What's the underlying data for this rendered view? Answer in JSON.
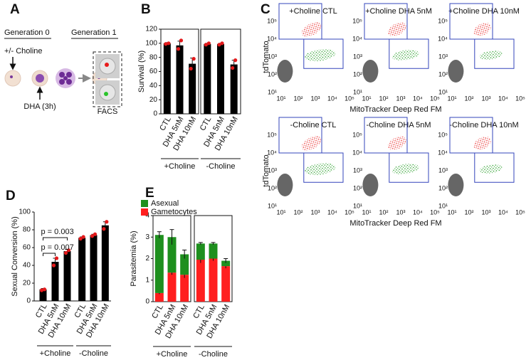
{
  "panel_labels": [
    "A",
    "B",
    "C",
    "D",
    "E"
  ],
  "panel_a": {
    "generation_0": "Generation 0",
    "generation_1": "Generation 1",
    "choline": "+/- Choline",
    "dha": "DHA (3h)",
    "facs": "FACS"
  },
  "panel_c": {
    "plots": [
      "+Choline CTL",
      "+Choline DHA 5nM",
      "+Choline DHA 10nM",
      "-Choline CTL",
      "-Choline DHA 5nM",
      "-Choline DHA 10nM"
    ],
    "xlabel": "MitoTracker Deep Red FM",
    "ylabel": "tdTomato",
    "ticks": [
      "10¹",
      "10²",
      "10³",
      "10⁴",
      "10⁵"
    ]
  },
  "chart_data": [
    {
      "type": "bar",
      "ylabel": "Survival (%)",
      "ylim": [
        0,
        120
      ],
      "yticks": [
        0,
        20,
        40,
        60,
        80,
        100,
        120
      ],
      "framed": true,
      "color": "#000000",
      "point_color": "#e41a1c",
      "groups": [
        {
          "name": "+Choline",
          "categories": [
            "CTL",
            "DHA 5nM",
            "DHA 10nM"
          ],
          "values": [
            100,
            97,
            71
          ],
          "errors": [
            1,
            6,
            8
          ],
          "points": [
            [
              99,
              100
            ],
            [
              92,
              104
            ],
            [
              64,
              78
            ]
          ]
        },
        {
          "name": "-Choline",
          "categories": [
            "CTL",
            "DHA 5nM",
            "DHA 10nM"
          ],
          "values": [
            99,
            99,
            70
          ],
          "errors": [
            1,
            1,
            6
          ],
          "points": [
            [
              98,
              100
            ],
            [
              98,
              100
            ],
            [
              65,
              76
            ]
          ]
        }
      ]
    },
    {
      "type": "bar",
      "ylabel": "Sexual Conversion (%)",
      "ylim": [
        0,
        100
      ],
      "yticks": [
        0,
        20,
        40,
        60,
        80,
        100
      ],
      "framed": false,
      "color": "#000000",
      "point_color": "#e41a1c",
      "annotations": [
        "p = 0.003",
        "p = 0.007"
      ],
      "groups": [
        {
          "name": "+Choline",
          "categories": [
            "CTL",
            "DHA 5nM",
            "DHA 10nM"
          ],
          "values": [
            13,
            44,
            56
          ],
          "errors": [
            1,
            4,
            2
          ],
          "points": [
            [
              12,
              13
            ],
            [
              40,
              48
            ],
            [
              54,
              57
            ]
          ]
        },
        {
          "name": "-Choline",
          "categories": [
            "CTL",
            "DHA 5nM",
            "DHA 10nM"
          ],
          "values": [
            71,
            74,
            85
          ],
          "errors": [
            1,
            1,
            4
          ],
          "points": [
            [
              70,
              72
            ],
            [
              73,
              75
            ],
            [
              81,
              89
            ]
          ]
        }
      ]
    },
    {
      "type": "stacked_bar",
      "ylabel": "Parasitemia (%)",
      "ylim": [
        0,
        4
      ],
      "yticks": [
        0,
        1,
        2,
        3,
        4
      ],
      "framed": true,
      "legend": "top-left",
      "series": [
        {
          "name": "Gametocytes",
          "color": "#ff1f1f"
        },
        {
          "name": "Asexual",
          "color": "#1e8f1e"
        }
      ],
      "groups": [
        {
          "name": "+Choline",
          "categories": [
            "CTL",
            "DHA 5nM",
            "DHA 10nM"
          ],
          "values": [
            [
              0.4,
              1.35,
              1.25
            ],
            [
              2.7,
              1.65,
              0.95
            ]
          ],
          "errors": [
            [
              0.05,
              0.1,
              0.15
            ],
            [
              0.15,
              0.35,
              0.2
            ]
          ]
        },
        {
          "name": "-Choline",
          "categories": [
            "CTL",
            "DHA 5nM",
            "DHA 10nM"
          ],
          "values": [
            [
              1.95,
              2.0,
              1.65
            ],
            [
              0.75,
              0.7,
              0.25
            ]
          ],
          "errors": [
            [
              0.15,
              0.1,
              0.1
            ],
            [
              0.05,
              0.05,
              0.1
            ]
          ]
        }
      ]
    }
  ]
}
